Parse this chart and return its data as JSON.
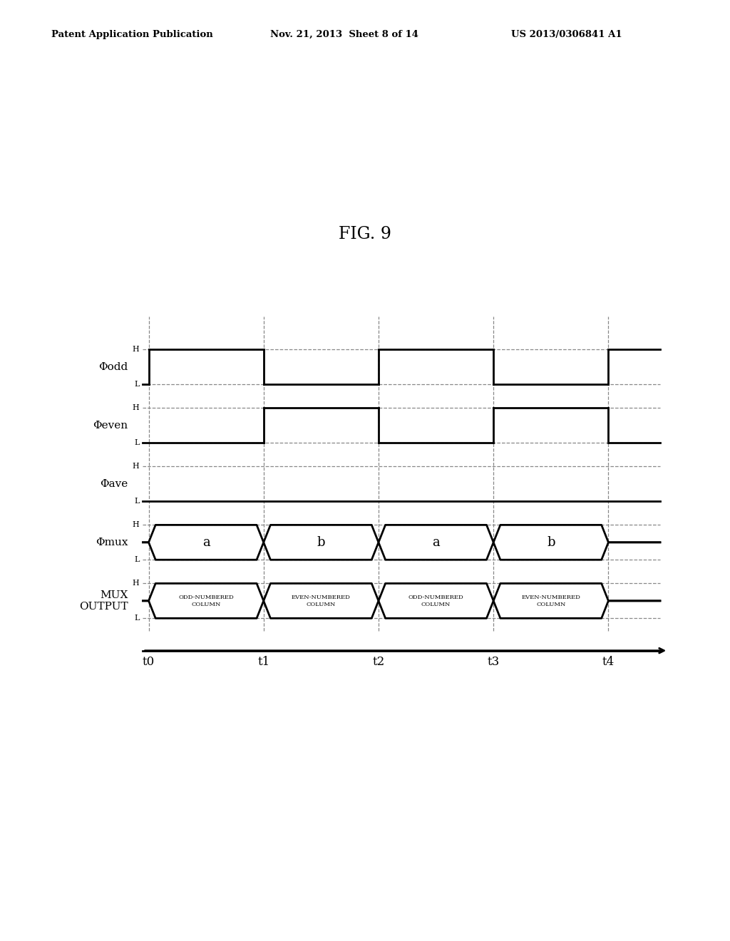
{
  "title": "FIG. 9",
  "header_left": "Patent Application Publication",
  "header_mid": "Nov. 21, 2013  Sheet 8 of 14",
  "header_right": "US 2013/0306841 A1",
  "t_labels": [
    "t0",
    "t1",
    "t2",
    "t3",
    "t4"
  ],
  "background": "#ffffff",
  "line_color": "#000000",
  "dashed_color": "#888888",
  "segment_labels_mux": [
    "a",
    "b",
    "a",
    "b"
  ],
  "segment_labels_output": [
    "ODD-NUMBERED\nCOLUMN",
    "EVEN-NUMBERED\nCOLUMN",
    "ODD-NUMBERED\nCOLUMN",
    "EVEN-NUMBERED\nCOLUMN"
  ],
  "signal_names": [
    "Φodd",
    "Φeven",
    "Φave",
    "Φmux",
    "MUX\nOUTPUT"
  ]
}
